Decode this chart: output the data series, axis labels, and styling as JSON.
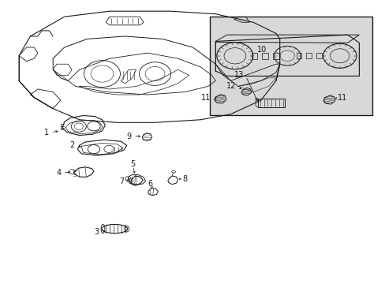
{
  "bg_color": "#ffffff",
  "line_color": "#1a1a1a",
  "box_bg": "#d8d8d8",
  "fig_w": 4.89,
  "fig_h": 3.6,
  "dpi": 100,
  "label_fs": 7,
  "arrow_lw": 0.5,
  "arrow_ms": 4,
  "labels": {
    "1": [
      0.125,
      0.535,
      0.155,
      0.535
    ],
    "2": [
      0.195,
      0.49,
      0.225,
      0.478
    ],
    "3": [
      0.255,
      0.182,
      0.278,
      0.182
    ],
    "4": [
      0.155,
      0.388,
      0.19,
      0.388
    ],
    "5": [
      0.34,
      0.415,
      0.34,
      0.38
    ],
    "6": [
      0.39,
      0.35,
      0.398,
      0.33
    ],
    "7": [
      0.333,
      0.362,
      0.358,
      0.365
    ],
    "8": [
      0.47,
      0.368,
      0.455,
      0.36
    ],
    "9": [
      0.34,
      0.52,
      0.37,
      0.52
    ],
    "10": [
      0.68,
      0.825,
      0.68,
      0.825
    ],
    "11L": [
      0.545,
      0.665,
      0.565,
      0.65
    ],
    "11R": [
      0.875,
      0.66,
      0.855,
      0.647
    ],
    "12": [
      0.612,
      0.7,
      0.638,
      0.682
    ],
    "13": [
      0.632,
      0.74,
      0.668,
      0.735
    ]
  }
}
